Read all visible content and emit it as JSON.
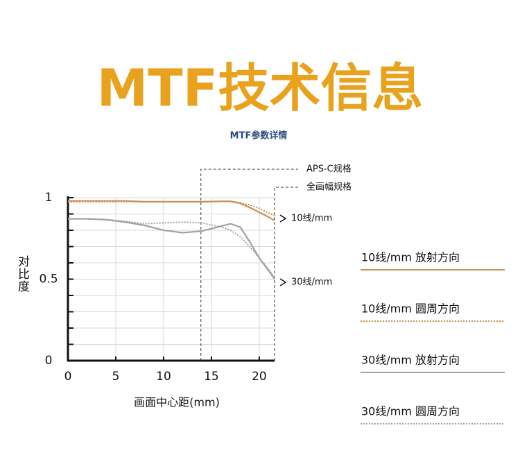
{
  "header": {
    "title": "MTF技术信息",
    "subtitle": "MTF参数详情"
  },
  "chart_data": {
    "type": "line",
    "x_label": "画面中心距(mm)",
    "y_label": "对比度",
    "x": [
      0,
      2,
      4,
      6,
      8,
      10,
      12,
      14,
      16,
      17,
      18,
      19,
      20,
      21,
      21.6
    ],
    "series": [
      {
        "name": "10线/mm 放射方向",
        "color": "#c8905a",
        "dash": "solid",
        "values": [
          0.98,
          0.98,
          0.98,
          0.98,
          0.975,
          0.975,
          0.975,
          0.975,
          0.977,
          0.977,
          0.965,
          0.94,
          0.91,
          0.88,
          0.86
        ]
      },
      {
        "name": "10线/mm 圆周方向",
        "color": "#c8905a",
        "dash": "dotted",
        "values": [
          0.975,
          0.975,
          0.975,
          0.975,
          0.975,
          0.975,
          0.975,
          0.975,
          0.978,
          0.978,
          0.97,
          0.955,
          0.935,
          0.905,
          0.89
        ]
      },
      {
        "name": "30线/mm 放射方向",
        "color": "#a0a0a0",
        "dash": "solid",
        "values": [
          0.87,
          0.87,
          0.865,
          0.85,
          0.83,
          0.8,
          0.785,
          0.795,
          0.825,
          0.84,
          0.82,
          0.73,
          0.63,
          0.55,
          0.5
        ]
      },
      {
        "name": "30线/mm 圆周方向",
        "color": "#a0a0a0",
        "dash": "dotted",
        "values": [
          0.87,
          0.87,
          0.865,
          0.855,
          0.84,
          0.845,
          0.85,
          0.845,
          0.82,
          0.8,
          0.76,
          0.7,
          0.63,
          0.56,
          0.51
        ]
      }
    ],
    "curve_labels": [
      "10线/mm",
      "30线/mm"
    ],
    "markers": [
      {
        "text": "APS-C规格",
        "x": 13.9
      },
      {
        "text": "全画幅规格",
        "x": 21.6
      }
    ],
    "xlim": [
      0,
      21.6
    ],
    "ylim": [
      0,
      1
    ],
    "xticks": [
      0,
      5,
      10,
      15,
      20
    ],
    "yticks": [
      0,
      0.5,
      1
    ],
    "y_minor_ticks": [
      0.1,
      0.2,
      0.3,
      0.4,
      0.6,
      0.7,
      0.8,
      0.9
    ],
    "grid": true
  }
}
